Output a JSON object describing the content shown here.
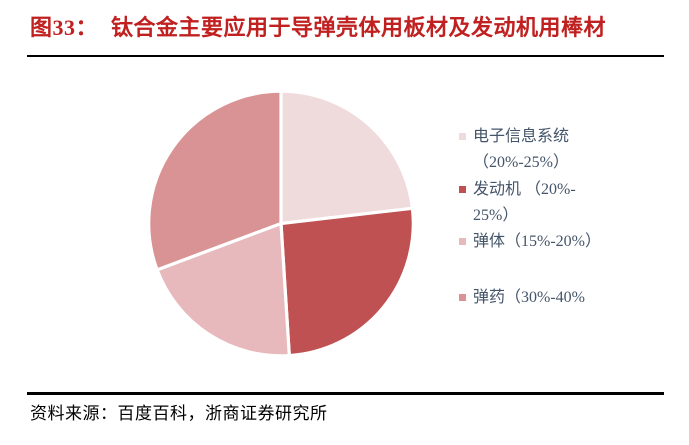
{
  "header": {
    "figure_label": "图33：",
    "title": "钛合金主要应用于导弹壳体用板材及发动机用棒材",
    "title_color": "#c0201f"
  },
  "legend": {
    "text_color": "#44546a",
    "items": [
      {
        "name": "electronic-info-system",
        "lines": [
          "电子信息系统",
          "（20%-25%）"
        ],
        "color": "#f0dbdc"
      },
      {
        "name": "engine",
        "lines": [
          "发动机 （20%-",
          "25%）"
        ],
        "color": "#c05152"
      },
      {
        "name": "missile-body",
        "lines": [
          "弹体（15%-20%）"
        ],
        "color": "#e7b8bc"
      },
      {
        "name": "ammunition",
        "lines": [
          "弹药（30%-40%"
        ],
        "color": "#d99394"
      }
    ]
  },
  "footer": {
    "source": "资料来源：百度百科，浙商证券研究所"
  },
  "chart_data": {
    "type": "pie",
    "title": "钛合金主要应用于导弹壳体用板材及发动机用棒材",
    "categories": [
      "电子信息系统",
      "发动机",
      "弹体",
      "弹药"
    ],
    "slice_names": [
      "electronic-info-system",
      "engine",
      "missile-body",
      "ammunition"
    ],
    "legend_labels": [
      "电子信息系统（20%-25%）",
      "发动机（20%-25%）",
      "弹体（15%-20%）",
      "弹药（30%-40%"
    ],
    "value_ranges_pct": [
      [
        20,
        25
      ],
      [
        20,
        25
      ],
      [
        15,
        20
      ],
      [
        30,
        40
      ]
    ],
    "rendered_share_pct": [
      23.2,
      25.8,
      20.3,
      30.7
    ],
    "slice_angles_deg": [
      [
        0,
        83.4
      ],
      [
        83.4,
        176.4
      ],
      [
        176.4,
        249.5
      ],
      [
        249.5,
        360
      ]
    ],
    "colors": [
      "#f0dbdc",
      "#c05152",
      "#e7b8bc",
      "#d99394"
    ],
    "slice_border_color": "#ffffff",
    "start_at": "top",
    "direction": "clockwise",
    "legend_position": "right"
  }
}
